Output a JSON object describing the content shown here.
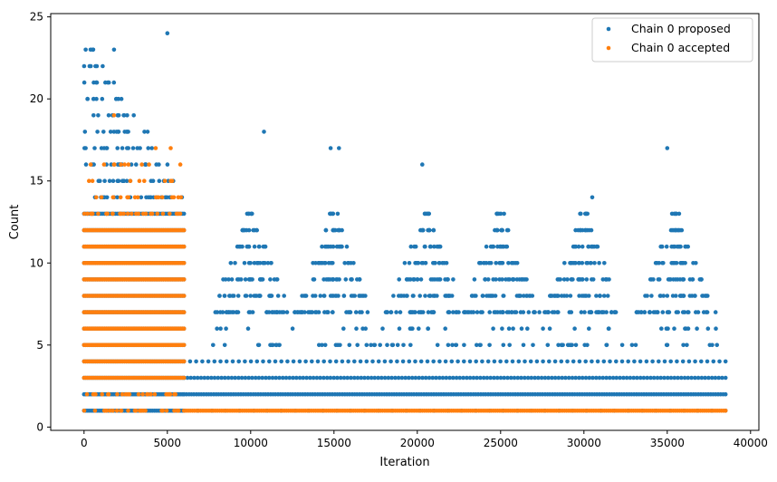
{
  "chart_data": {
    "type": "scatter",
    "title": "",
    "xlabel": "Iteration",
    "ylabel": "Count",
    "xlim": [
      -2000,
      40500
    ],
    "ylim": [
      -0.2,
      25.2
    ],
    "xticks": [
      0,
      5000,
      10000,
      15000,
      20000,
      25000,
      30000,
      35000,
      40000
    ],
    "xtick_labels": [
      "0",
      "5000",
      "10000",
      "15000",
      "20000",
      "25000",
      "30000",
      "35000",
      "40000"
    ],
    "yticks": [
      0,
      5,
      10,
      15,
      20,
      25
    ],
    "ytick_labels": [
      "0",
      "5",
      "10",
      "15",
      "20",
      "25"
    ],
    "grid": false,
    "legend_position": "top-right",
    "series": [
      {
        "name": "Chain 0 proposed",
        "color": "#1f77b4",
        "phase1": {
          "x_range": [
            0,
            6000
          ],
          "level_max": [
            [
              1,
              6000
            ],
            [
              2,
              6000
            ],
            [
              3,
              6000
            ],
            [
              4,
              6000
            ],
            [
              5,
              6000
            ],
            [
              6,
              6000
            ],
            [
              7,
              6000
            ],
            [
              8,
              6000
            ],
            [
              9,
              6000
            ],
            [
              10,
              6000
            ],
            [
              11,
              6000
            ],
            [
              12,
              6000
            ],
            [
              13,
              6000
            ],
            [
              14,
              5900
            ],
            [
              15,
              5500
            ],
            [
              16,
              5300
            ],
            [
              17,
              4800
            ],
            [
              18,
              4000
            ],
            [
              19,
              3000
            ],
            [
              20,
              2400
            ],
            [
              21,
              1800
            ],
            [
              22,
              1300
            ],
            [
              23,
              800
            ]
          ]
        },
        "bump_centers": [
          10000,
          15000,
          20500,
          25000,
          30000,
          35500
        ],
        "outliers": [
          [
            100,
            23
          ],
          [
            1800,
            23
          ],
          [
            5000,
            24
          ],
          [
            10800,
            18
          ],
          [
            14800,
            17
          ],
          [
            15300,
            17
          ],
          [
            20300,
            16
          ],
          [
            35000,
            17
          ],
          [
            30500,
            14
          ]
        ]
      },
      {
        "name": "Chain 0 accepted",
        "color": "#ff7f0e",
        "phase1": {
          "x_range": [
            0,
            6000
          ],
          "levels": [
            1,
            2,
            3,
            4,
            5,
            6,
            7,
            8,
            9,
            10,
            11,
            12,
            13,
            14,
            15,
            16
          ]
        },
        "phase2": {
          "x_range": [
            6000,
            38500
          ],
          "level": 1
        },
        "outliers": [
          [
            1800,
            19
          ],
          [
            4300,
            17
          ],
          [
            5200,
            17
          ],
          [
            400,
            16
          ],
          [
            1800,
            16
          ]
        ]
      }
    ]
  }
}
